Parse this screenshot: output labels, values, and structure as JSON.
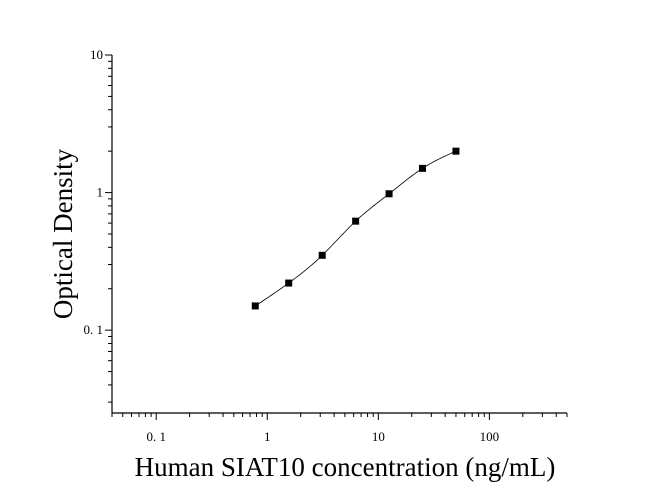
{
  "chart_data": {
    "type": "scatter",
    "title": "",
    "xlabel": "Human SIAT10 concentration (ng/mL)",
    "ylabel": "Optical Density",
    "x_scale": "log",
    "y_scale": "log",
    "xlim": [
      0.04,
      500
    ],
    "ylim": [
      0.025,
      10
    ],
    "x_ticks": [
      0.1,
      1,
      10,
      100
    ],
    "x_tick_labels": [
      "0. 1",
      "1",
      "10",
      "100"
    ],
    "y_ticks": [
      0.1,
      1,
      10
    ],
    "y_tick_labels": [
      "0. 1",
      "1",
      "10"
    ],
    "grid": false,
    "legend": "none",
    "fit_curve": true,
    "series": [
      {
        "marker": "square",
        "color": "#000000",
        "x": [
          0.78,
          1.56,
          3.125,
          6.25,
          12.5,
          25,
          50
        ],
        "y": [
          0.15,
          0.22,
          0.35,
          0.62,
          0.98,
          1.5,
          2.0
        ]
      }
    ]
  }
}
